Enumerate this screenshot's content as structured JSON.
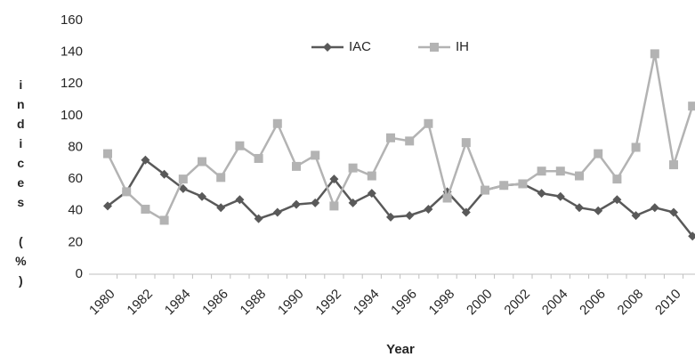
{
  "chart_data": {
    "type": "line",
    "x_label": "Year",
    "y_label": "indices (%)",
    "categories": [
      "1980",
      null,
      "1982",
      null,
      "1984",
      null,
      "1986",
      null,
      "1988",
      null,
      "1990",
      null,
      "1992",
      null,
      "1994",
      null,
      "1996",
      null,
      "1998",
      null,
      "2000",
      null,
      "2002",
      null,
      "2004",
      null,
      "2006",
      null,
      "2008",
      null,
      "2010",
      null
    ],
    "series": [
      {
        "name": "IAC",
        "color": "#595959",
        "marker": "diamond",
        "values": [
          43,
          52,
          72,
          63,
          54,
          49,
          42,
          47,
          35,
          39,
          44,
          45,
          60,
          45,
          51,
          36,
          37,
          41,
          52,
          39,
          53,
          56,
          57,
          51,
          49,
          42,
          40,
          47,
          37,
          42,
          39,
          24
        ]
      },
      {
        "name": "IH",
        "color": "#b3b3b3",
        "marker": "square",
        "values": [
          76,
          52,
          41,
          34,
          60,
          71,
          61,
          81,
          73,
          95,
          68,
          75,
          43,
          67,
          62,
          86,
          84,
          95,
          48,
          83,
          53,
          56,
          57,
          65,
          65,
          62,
          76,
          60,
          80,
          139,
          69,
          106
        ]
      }
    ],
    "ylim": [
      0,
      160
    ],
    "yticks": [
      0,
      20,
      40,
      60,
      80,
      100,
      120,
      140,
      160
    ]
  }
}
